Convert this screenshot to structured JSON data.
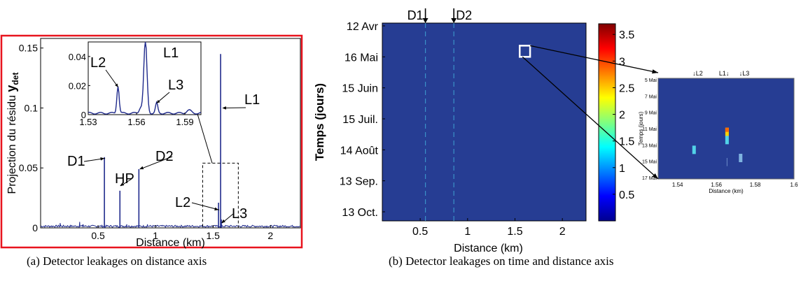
{
  "panel_a": {
    "caption": "(a)  Detector leakages on distance axis",
    "border_color": "#e8141e",
    "line_color": "#1f2a8c",
    "chart_data": {
      "type": "line",
      "title": "",
      "xlabel": "Distance (km)",
      "ylabel_main": "Projection du résidu ",
      "ylabel_symbol": "y",
      "ylabel_sub": "det",
      "xlim": [
        0.0,
        2.26
      ],
      "ylim": [
        0,
        0.158
      ],
      "xticks": [
        0.5,
        1,
        1.5,
        2
      ],
      "xtick_labels": [
        "0.5",
        "1",
        "1.5",
        "2"
      ],
      "yticks": [
        0,
        0.05,
        0.1,
        0.15
      ],
      "ytick_labels": [
        "0",
        "0.05",
        "0.1",
        "0.15"
      ],
      "peaks": [
        {
          "label": "D1",
          "x": 0.555,
          "y": 0.059
        },
        {
          "label": "HP",
          "x": 0.69,
          "y": 0.031
        },
        {
          "label": "D2",
          "x": 0.855,
          "y": 0.049
        },
        {
          "label": "L2",
          "x": 1.548,
          "y": 0.021
        },
        {
          "label": "L1",
          "x": 1.566,
          "y": 0.145
        },
        {
          "label": "L3",
          "x": 1.572,
          "y": 0.007
        }
      ],
      "inset": {
        "xlim": [
          1.53,
          1.6
        ],
        "ylim": [
          0,
          0.05
        ],
        "xticks": [
          1.53,
          1.56,
          1.59
        ],
        "xtick_labels": [
          "1.53",
          "1.56",
          "1.59"
        ],
        "yticks": [
          0,
          0.02,
          0.04
        ],
        "ytick_labels": [
          "0",
          "0.02",
          "0.04"
        ],
        "peaks": [
          {
            "label": "L2",
            "x": 1.5485,
            "y": 0.019
          },
          {
            "label": "L1",
            "x": 1.5655,
            "y": 0.05
          },
          {
            "label": "L3",
            "x": 1.5725,
            "y": 0.007
          }
        ]
      }
    }
  },
  "panel_b": {
    "caption": "(b)  Detector leakages on time and distance axis",
    "background_color": "#263d93",
    "chart_data": {
      "type": "heatmap",
      "xlabel": "Distance (km)",
      "ylabel": "Temps (jours)",
      "xlim": [
        0.1,
        2.25
      ],
      "xticks": [
        0.5,
        1,
        1.5,
        2
      ],
      "xtick_labels": [
        "0.5",
        "1",
        "1.5",
        "2"
      ],
      "ytick_labels": [
        "12 Avr",
        "16 Mai",
        "15 Juin",
        "15 Juil.",
        "14 Août",
        "13 Sep.",
        "13 Oct."
      ],
      "top_markers": [
        {
          "label": "D1",
          "x": 0.555
        },
        {
          "label": "D2",
          "x": 0.855
        }
      ],
      "colorbar": {
        "min": 0,
        "max": 3.7,
        "ticks": [
          0.5,
          1,
          1.5,
          2,
          2.5,
          3,
          3.5
        ],
        "tick_labels": [
          "0.5",
          "1",
          "1.5",
          "2",
          "2.5",
          "3",
          "3.5"
        ]
      },
      "zoom_box": {
        "x": [
          1.55,
          1.63
        ],
        "y_label": "16 Mai"
      },
      "inset": {
        "xlabel": "Distance (km)",
        "ylabel": "Temps (jours)",
        "xlim": [
          1.53,
          1.6
        ],
        "xticks": [
          1.54,
          1.56,
          1.58,
          1.6
        ],
        "xtick_labels": [
          "1.54",
          "1.56",
          "1.58",
          "1.6"
        ],
        "ytick_labels": [
          "5 Mai",
          "7 Mai",
          "9 Mai",
          "11 Mai",
          "13 Mai",
          "15 Mai",
          "17 Mai"
        ],
        "top_labels": [
          "↓L2",
          "L1↓",
          "↓L3"
        ],
        "cells": [
          {
            "x": 1.5485,
            "row": 4.3,
            "value": 1.5
          },
          {
            "x": 1.5655,
            "row": 3.2,
            "value": 3.2
          },
          {
            "x": 1.5655,
            "row": 3.7,
            "value": 1.6
          },
          {
            "x": 1.5725,
            "row": 4.8,
            "value": 1.3
          }
        ]
      }
    }
  }
}
